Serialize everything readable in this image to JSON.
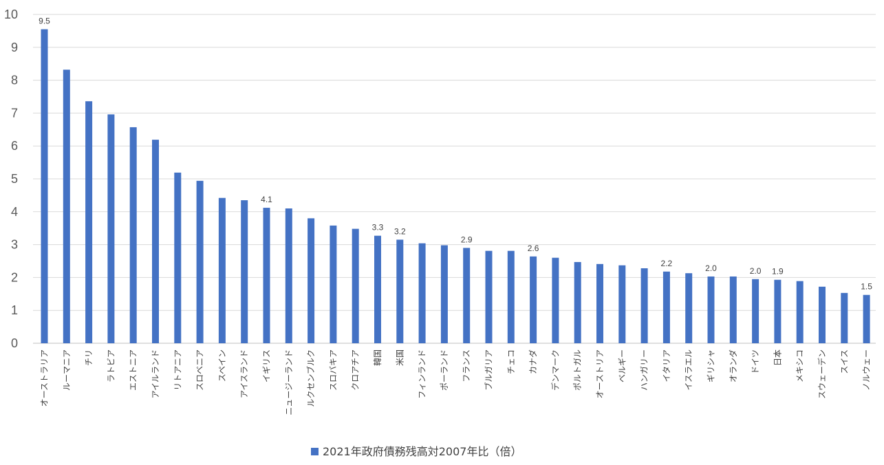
{
  "chart_data": {
    "type": "bar",
    "title": "",
    "xlabel": "",
    "ylabel": "",
    "ylim": [
      0,
      10
    ],
    "yticks": [
      0,
      1,
      2,
      3,
      4,
      5,
      6,
      7,
      8,
      9,
      10
    ],
    "grid": true,
    "legend_position": "bottom",
    "bar_color": "#4472C4",
    "categories": [
      "オーストラリア",
      "ルーマニア",
      "チリ",
      "ラトビア",
      "エストニア",
      "アイルランド",
      "リトアニア",
      "スロベニア",
      "スペイン",
      "アイスランド",
      "イギリス",
      "ニュージーランド",
      "ルクセンブルク",
      "スロバキア",
      "クロアチア",
      "韓国",
      "米国",
      "フィンランド",
      "ポーランド",
      "フランス",
      "ブルガリア",
      "チェコ",
      "カナダ",
      "デンマーク",
      "ポルトガル",
      "オーストリア",
      "ベルギー",
      "ハンガリー",
      "イタリア",
      "イスラエル",
      "ギリシャ",
      "オランダ",
      "ドイツ",
      "日本",
      "メキシコ",
      "スウェーデン",
      "スイス",
      "ノルウェー"
    ],
    "series": [
      {
        "name": "2021年政府債務残高対2007年比（倍）",
        "values": [
          9.55,
          8.32,
          7.36,
          6.96,
          6.57,
          6.19,
          5.19,
          4.94,
          4.42,
          4.35,
          4.12,
          4.1,
          3.8,
          3.58,
          3.48,
          3.27,
          3.15,
          3.04,
          2.98,
          2.9,
          2.81,
          2.81,
          2.64,
          2.6,
          2.47,
          2.41,
          2.37,
          2.28,
          2.18,
          2.13,
          2.03,
          2.03,
          1.95,
          1.93,
          1.89,
          1.72,
          1.53,
          1.47
        ]
      }
    ],
    "data_labels": [
      {
        "category": "オーストラリア",
        "text": "9.5"
      },
      {
        "category": "イギリス",
        "text": "4.1"
      },
      {
        "category": "韓国",
        "text": "3.3"
      },
      {
        "category": "米国",
        "text": "3.2"
      },
      {
        "category": "フランス",
        "text": "2.9"
      },
      {
        "category": "カナダ",
        "text": "2.6"
      },
      {
        "category": "イタリア",
        "text": "2.2"
      },
      {
        "category": "ギリシャ",
        "text": "2.0"
      },
      {
        "category": "ドイツ",
        "text": "2.0"
      },
      {
        "category": "日本",
        "text": "1.9"
      },
      {
        "category": "ノルウェー",
        "text": "1.5"
      }
    ]
  }
}
